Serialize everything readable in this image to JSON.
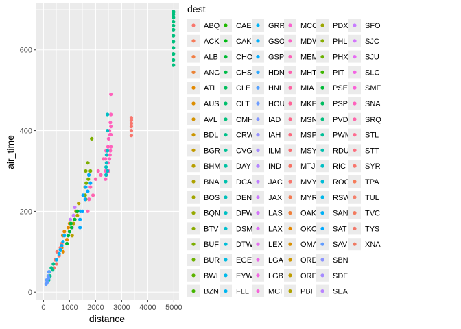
{
  "chart_data": {
    "type": "scatter",
    "title": "",
    "xlabel": "distance",
    "ylabel": "air_time",
    "xlim": [
      -300,
      5200
    ],
    "ylim": [
      -20,
      715
    ],
    "x_ticks": [
      0,
      1000,
      2000,
      3000,
      4000,
      5000
    ],
    "y_ticks": [
      0,
      200,
      400,
      600
    ],
    "grid": true,
    "legend": {
      "title": "dest",
      "placement": "right",
      "columns": 8,
      "entries": [
        {
          "label": "ABQ",
          "color": "#F8766D"
        },
        {
          "label": "ACK",
          "color": "#F67B5A"
        },
        {
          "label": "ALB",
          "color": "#F17F45"
        },
        {
          "label": "ANC",
          "color": "#EB8335"
        },
        {
          "label": "ATL",
          "color": "#E38900"
        },
        {
          "label": "AUS",
          "color": "#DC8D00"
        },
        {
          "label": "AVL",
          "color": "#D49200"
        },
        {
          "label": "BDL",
          "color": "#CB9600"
        },
        {
          "label": "BGR",
          "color": "#C29A00"
        },
        {
          "label": "BHM",
          "color": "#B79F00"
        },
        {
          "label": "BNA",
          "color": "#ADA200"
        },
        {
          "label": "BOS",
          "color": "#A2A500"
        },
        {
          "label": "BQN",
          "color": "#96A900"
        },
        {
          "label": "BTV",
          "color": "#8AAB00"
        },
        {
          "label": "BUF",
          "color": "#7CAE00"
        },
        {
          "label": "BUR",
          "color": "#6CB100"
        },
        {
          "label": "BWI",
          "color": "#5BB300"
        },
        {
          "label": "BZN",
          "color": "#44B600"
        },
        {
          "label": "CAE",
          "color": "#1EB800"
        },
        {
          "label": "CAK",
          "color": "#00BA13"
        },
        {
          "label": "CHO",
          "color": "#00BB33"
        },
        {
          "label": "CHS",
          "color": "#00BC4A"
        },
        {
          "label": "CLE",
          "color": "#00BE5C"
        },
        {
          "label": "CLT",
          "color": "#00BF6C"
        },
        {
          "label": "CMH",
          "color": "#00C07B"
        },
        {
          "label": "CRW",
          "color": "#00C089"
        },
        {
          "label": "CVG",
          "color": "#00C196"
        },
        {
          "label": "DAY",
          "color": "#00C1A3"
        },
        {
          "label": "DCA",
          "color": "#00C1AE"
        },
        {
          "label": "DEN",
          "color": "#00C0BA"
        },
        {
          "label": "DFW",
          "color": "#00C0C4"
        },
        {
          "label": "DSM",
          "color": "#00BFCE"
        },
        {
          "label": "DTW",
          "color": "#00BDD8"
        },
        {
          "label": "EGE",
          "color": "#00BBE1"
        },
        {
          "label": "EYW",
          "color": "#00B9E9"
        },
        {
          "label": "FLL",
          "color": "#00B6F0"
        },
        {
          "label": "GRR",
          "color": "#00B3F6"
        },
        {
          "label": "GSO",
          "color": "#00AFFB"
        },
        {
          "label": "GSP",
          "color": "#00ABFF"
        },
        {
          "label": "HDN",
          "color": "#2CA6FF"
        },
        {
          "label": "HNL",
          "color": "#54A1FF"
        },
        {
          "label": "HOU",
          "color": "#6D9CFF"
        },
        {
          "label": "IAD",
          "color": "#8296FF"
        },
        {
          "label": "IAH",
          "color": "#9590FF"
        },
        {
          "label": "ILM",
          "color": "#A58AFF"
        },
        {
          "label": "IND",
          "color": "#B384FF"
        },
        {
          "label": "JAC",
          "color": "#C07EFF"
        },
        {
          "label": "JAX",
          "color": "#CB79FF"
        },
        {
          "label": "LAS",
          "color": "#D574FB"
        },
        {
          "label": "LAX",
          "color": "#DE70F6"
        },
        {
          "label": "LEX",
          "color": "#E56DF0"
        },
        {
          "label": "LGA",
          "color": "#EC69E9"
        },
        {
          "label": "LGB",
          "color": "#F166E1"
        },
        {
          "label": "MCI",
          "color": "#F564D8"
        },
        {
          "label": "MCO",
          "color": "#F963CF"
        },
        {
          "label": "MDW",
          "color": "#FB62C5"
        },
        {
          "label": "MEM",
          "color": "#FD61BA"
        },
        {
          "label": "MHT",
          "color": "#FE61AF"
        },
        {
          "label": "MIA",
          "color": "#FF62A3"
        },
        {
          "label": "MKE",
          "color": "#FF6397"
        },
        {
          "label": "MSN",
          "color": "#FE668A"
        },
        {
          "label": "MSP",
          "color": "#FC697D"
        },
        {
          "label": "MSY",
          "color": "#FA6D71"
        },
        {
          "label": "MTJ",
          "color": "#F77163"
        },
        {
          "label": "MVY",
          "color": "#F8766D"
        },
        {
          "label": "MYR",
          "color": "#F57A52"
        },
        {
          "label": "OAK",
          "color": "#EF7F3A"
        },
        {
          "label": "OKC",
          "color": "#E58700"
        },
        {
          "label": "OMA",
          "color": "#DA8F00"
        },
        {
          "label": "ORD",
          "color": "#CD9600"
        },
        {
          "label": "ORF",
          "color": "#BE9C00"
        },
        {
          "label": "PBI",
          "color": "#AEA200"
        },
        {
          "label": "PDX",
          "color": "#9CA700"
        },
        {
          "label": "PHL",
          "color": "#86AC00"
        },
        {
          "label": "PHX",
          "color": "#6BB100"
        },
        {
          "label": "PIT",
          "color": "#3EB600"
        },
        {
          "label": "PSE",
          "color": "#00BA38"
        },
        {
          "label": "PSP",
          "color": "#00BD5F"
        },
        {
          "label": "PVD",
          "color": "#00BF7D"
        },
        {
          "label": "PWM",
          "color": "#00C097"
        },
        {
          "label": "RDU",
          "color": "#00C0AF"
        },
        {
          "label": "RIC",
          "color": "#00BFC4"
        },
        {
          "label": "ROC",
          "color": "#00BCD8"
        },
        {
          "label": "RSW",
          "color": "#00B7E9"
        },
        {
          "label": "SAN",
          "color": "#00B0F6"
        },
        {
          "label": "SAT",
          "color": "#00A9FF"
        },
        {
          "label": "SAV",
          "color": "#619CFF"
        },
        {
          "label": "SBN",
          "color": "#8B93FF"
        },
        {
          "label": "SDF",
          "color": "#A58AFF"
        },
        {
          "label": "SEA",
          "color": "#B983FF"
        },
        {
          "label": "SFO",
          "color": "#C77CFF"
        },
        {
          "label": "SJC",
          "color": "#D476FC"
        },
        {
          "label": "SJU",
          "color": "#E76BF3"
        },
        {
          "label": "SLC",
          "color": "#F464E3"
        },
        {
          "label": "SMF",
          "color": "#FB61D7"
        },
        {
          "label": "SNA",
          "color": "#FF62BC"
        },
        {
          "label": "SRQ",
          "color": "#FF64A9"
        },
        {
          "label": "STL",
          "color": "#FF6C91"
        },
        {
          "label": "STT",
          "color": "#FD6F7F"
        },
        {
          "label": "SYR",
          "color": "#F8766D"
        },
        {
          "label": "TPA",
          "color": "#F67C5A"
        },
        {
          "label": "TUL",
          "color": "#F4806C"
        },
        {
          "label": "TVC",
          "color": "#F37B5F"
        },
        {
          "label": "TYS",
          "color": "#F2786A"
        },
        {
          "label": "XNA",
          "color": "#F07A62"
        }
      ]
    },
    "series": [
      {
        "color": "#00BF7D",
        "x": [
          4983,
          4983,
          4983,
          4983,
          4983,
          4983,
          4983,
          4983,
          4983,
          4983,
          4983,
          4983,
          4983
        ],
        "y": [
          562,
          575,
          590,
          605,
          620,
          635,
          650,
          660,
          670,
          680,
          688,
          693,
          695
        ]
      },
      {
        "color": "#F8766D",
        "x": [
          3370,
          3370,
          3370,
          3370,
          3370,
          3370
        ],
        "y": [
          388,
          400,
          410,
          418,
          426,
          432
        ]
      },
      {
        "color": "#FF62BC",
        "x": [
          2380,
          2380,
          2380,
          2400,
          2420,
          2420,
          2450,
          2450,
          2475,
          2475,
          2500,
          2500,
          2530,
          2530,
          2550,
          2550,
          2565,
          2565,
          2586,
          2586,
          2586,
          2586,
          2586
        ],
        "y": [
          280,
          300,
          330,
          350,
          320,
          290,
          300,
          340,
          320,
          360,
          300,
          380,
          330,
          400,
          340,
          390,
          350,
          420,
          360,
          390,
          410,
          440,
          490
        ]
      },
      {
        "color": "#00BFC4",
        "x": [
          2400,
          2400,
          2420,
          2420,
          2454,
          2454,
          2454,
          2454
        ],
        "y": [
          290,
          310,
          320,
          340,
          300,
          350,
          400,
          440
        ]
      },
      {
        "color": "#7CAE00",
        "x": [
          1600,
          1600,
          1620,
          1620,
          1640,
          1700,
          1720,
          1800,
          1850
        ],
        "y": [
          240,
          260,
          230,
          300,
          270,
          320,
          280,
          300,
          380
        ]
      },
      {
        "color": "#00A9FF",
        "x": [
          1400,
          1400,
          1420,
          1500,
          1520,
          1600,
          1620,
          1700,
          1740,
          1800
        ],
        "y": [
          160,
          180,
          200,
          200,
          240,
          230,
          260,
          250,
          290,
          270
        ]
      },
      {
        "color": "#C77CFF",
        "x": [
          1000,
          1030,
          1100,
          1150,
          1200,
          1250
        ],
        "y": [
          150,
          180,
          160,
          190,
          210,
          200
        ]
      },
      {
        "color": "#E38900",
        "x": [
          700,
          740,
          760,
          800,
          900,
          950,
          1000
        ],
        "y": [
          110,
          140,
          100,
          150,
          130,
          160,
          170
        ]
      },
      {
        "color": "#F8766D",
        "x": [
          400,
          450,
          500,
          520,
          600,
          650,
          700
        ],
        "y": [
          60,
          80,
          70,
          100,
          90,
          110,
          120
        ]
      },
      {
        "color": "#00C08B",
        "x": [
          200,
          220,
          250,
          300,
          350,
          380
        ],
        "y": [
          30,
          50,
          40,
          60,
          55,
          70
        ]
      },
      {
        "color": "#619CFF",
        "x": [
          100,
          120,
          150,
          180,
          200,
          210
        ],
        "y": [
          20,
          30,
          25,
          40,
          35,
          50
        ]
      },
      {
        "color": "#FF64B0",
        "x": [
          1700,
          1750,
          1800,
          1900,
          2000,
          2100,
          2200,
          2300
        ],
        "y": [
          200,
          230,
          260,
          240,
          280,
          300,
          290,
          330
        ]
      },
      {
        "color": "#B79F00",
        "x": [
          1100,
          1150,
          1200,
          1250,
          1300,
          1350
        ],
        "y": [
          140,
          170,
          180,
          200,
          190,
          220
        ]
      },
      {
        "color": "#00BA38",
        "x": [
          900,
          950,
          1000,
          1050,
          1080,
          1200,
          1300
        ],
        "y": [
          120,
          140,
          150,
          170,
          160,
          180,
          200
        ]
      },
      {
        "color": "#00B0F6",
        "x": [
          500,
          600,
          650,
          700,
          750,
          800
        ],
        "y": [
          80,
          95,
          105,
          115,
          125,
          140
        ]
      }
    ]
  }
}
